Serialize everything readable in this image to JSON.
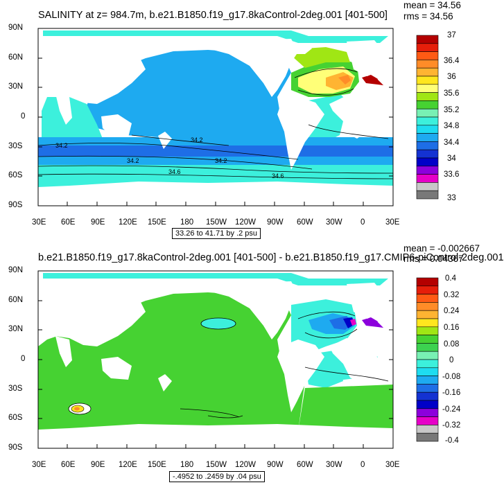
{
  "panels": [
    {
      "title": "SALINITY at z= 984.7m, b.e21.B1850.f19_g17.8kaControl-2deg.001 [401-500]",
      "mean_text": "mean = 34.56",
      "rms_text": "rms = 34.56",
      "range_text": "33.26 to 41.71 by .2 psu",
      "lat_labels": [
        "90N",
        "60N",
        "30N",
        "0",
        "30S",
        "60S",
        "90S"
      ],
      "lon_labels": [
        "30E",
        "60E",
        "90E",
        "120E",
        "150E",
        "180",
        "150W",
        "120W",
        "90W",
        "60W",
        "30W",
        "0",
        "30E"
      ],
      "contour_labels": [
        "34.2",
        "34.2",
        "34.2",
        "34.2",
        "34.6",
        "34.6"
      ],
      "colorbar_labels": [
        "37",
        "36.4",
        "36",
        "35.6",
        "35.2",
        "34.8",
        "34.4",
        "34",
        "33.6",
        "33"
      ],
      "colorbar_colors": [
        "#b40000",
        "#e61e0a",
        "#ff5a14",
        "#ff8c28",
        "#ffb432",
        "#ffe61e",
        "#ffff78",
        "#a0e614",
        "#46d232",
        "#78f0b4",
        "#3cf0dc",
        "#1edcf0",
        "#1eaaf0",
        "#1e6ee6",
        "#1432d2",
        "#0000c8",
        "#8c00dc",
        "#e600c8",
        "#c8c8c8",
        "#787878"
      ]
    },
    {
      "title": "b.e21.B1850.f19_g17.8kaControl-2deg.001 [401-500] - b.e21.B1850.f19_g17.CMIP6-piControl-2deg.001",
      "mean_text": "mean = -0.002667",
      "rms_text": "rms = 0.04367",
      "range_text": "-.4952 to .2459 by .04 psu",
      "lat_labels": [
        "90N",
        "60N",
        "30N",
        "0",
        "30S",
        "60S",
        "90S"
      ],
      "lon_labels": [
        "30E",
        "60E",
        "90E",
        "120E",
        "150E",
        "180",
        "150W",
        "120W",
        "90W",
        "60W",
        "30W",
        "0",
        "30E"
      ],
      "colorbar_labels": [
        "0.4",
        "0.32",
        "0.24",
        "0.16",
        "0.08",
        "0",
        "-0.08",
        "-0.16",
        "-0.24",
        "-0.32",
        "-0.4"
      ],
      "colorbar_colors": [
        "#b40000",
        "#e61e0a",
        "#ff5a14",
        "#ff8c28",
        "#ffb432",
        "#ffe61e",
        "#a0e614",
        "#46d232",
        "#3cd250",
        "#78f0b4",
        "#3cf0dc",
        "#1edcf0",
        "#1eaaf0",
        "#1e6ee6",
        "#1432d2",
        "#0000c8",
        "#8c00dc",
        "#e600c8",
        "#c8c8c8",
        "#787878"
      ]
    }
  ]
}
